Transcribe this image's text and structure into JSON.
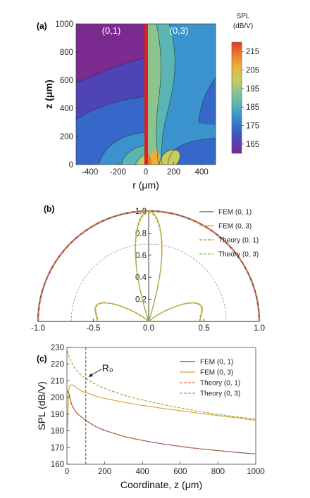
{
  "chart_data": [
    {
      "panel": "(a)",
      "type": "heatmap",
      "xlabel": "r (μm)",
      "ylabel": "z (μm)",
      "xlim": [
        -500,
        500
      ],
      "ylim": [
        0,
        1000
      ],
      "xticks": [
        -400,
        -200,
        0,
        200,
        400
      ],
      "yticks": [
        0,
        200,
        400,
        600,
        800,
        1000
      ],
      "left_mode": "(0,1)",
      "right_mode": "(0,3)",
      "colorbar": {
        "title": [
          "SPL",
          "(dB/V)"
        ],
        "ticks": [
          165,
          175,
          185,
          195,
          205,
          215
        ],
        "range": [
          160,
          220
        ],
        "colors": [
          "#7b2a90",
          "#4e44b5",
          "#3568c8",
          "#3a93cc",
          "#5bb5b2",
          "#8cc38e",
          "#c8cc5c",
          "#e8b33a",
          "#ee7a2a",
          "#e03a22"
        ]
      },
      "grid": false
    },
    {
      "panel": "(b)",
      "type": "line",
      "subtype": "polar-directivity",
      "xlim": [
        -1.0,
        1.0
      ],
      "ylim": [
        0,
        1.0
      ],
      "xticks": [
        "-1.0",
        "-0.5",
        "0.0",
        "0.5",
        "1.0"
      ],
      "yticks": [
        "0.2",
        "0.4",
        "0.6",
        "0.8",
        "1.0"
      ],
      "reference_circle_radius": 0.7,
      "series": [
        {
          "name": "FEM (0, 1)",
          "color": "#3b5b85",
          "dash": "solid"
        },
        {
          "name": "FEM (0, 3)",
          "color": "#d4a635",
          "dash": "solid"
        },
        {
          "name": "Theory (0, 1)",
          "color": "#e8703a",
          "dash": "dashed"
        },
        {
          "name": "Theory (0, 3)",
          "color": "#96b050",
          "dash": "dashed"
        }
      ],
      "legend": "top-right"
    },
    {
      "panel": "(c)",
      "type": "line",
      "xlabel": "Coordinate, z (μm)",
      "ylabel": "SPL (dB/V)",
      "xlim": [
        0,
        1000
      ],
      "ylim": [
        160,
        230
      ],
      "xticks": [
        0,
        200,
        400,
        600,
        800,
        1000
      ],
      "yticks": [
        160,
        170,
        180,
        190,
        200,
        210,
        220,
        230
      ],
      "annotation": {
        "text": "R₀",
        "x": 100
      },
      "x": [
        2,
        10,
        25,
        50,
        75,
        100,
        150,
        200,
        300,
        400,
        500,
        600,
        700,
        800,
        900,
        1000
      ],
      "series": [
        {
          "name": "FEM (0, 1)",
          "color": "#3b5b85",
          "dash": "solid",
          "values": [
            204,
            202.5,
            196,
            191,
            188.5,
            186.3,
            182.8,
            180.3,
            176.8,
            174.3,
            172.3,
            170.7,
            169.3,
            168.2,
            167.1,
            166.2
          ]
        },
        {
          "name": "FEM (0, 3)",
          "color": "#d4a635",
          "dash": "solid",
          "values": [
            178,
            204,
            207.5,
            206,
            204,
            203,
            201,
            199.5,
            197.2,
            195.3,
            193.6,
            192.1,
            190.6,
            189.2,
            187.8,
            186.3
          ]
        },
        {
          "name": "Theory (0, 1)",
          "color": "#e8703a",
          "dash": "dashed",
          "values": [
            203,
            202,
            196,
            191,
            188.5,
            186.3,
            182.8,
            180.3,
            176.8,
            174.3,
            172.3,
            170.7,
            169.3,
            168.2,
            167.1,
            166.2
          ]
        },
        {
          "name": "Theory (0, 3)",
          "color": "#96b050",
          "dash": "dashed",
          "values": [
            228,
            225,
            221,
            216.5,
            213.5,
            211.5,
            208,
            205.5,
            201.5,
            198.5,
            196,
            193.7,
            191.7,
            190,
            188.4,
            187
          ]
        }
      ],
      "legend": "top-right",
      "grid": false
    }
  ]
}
